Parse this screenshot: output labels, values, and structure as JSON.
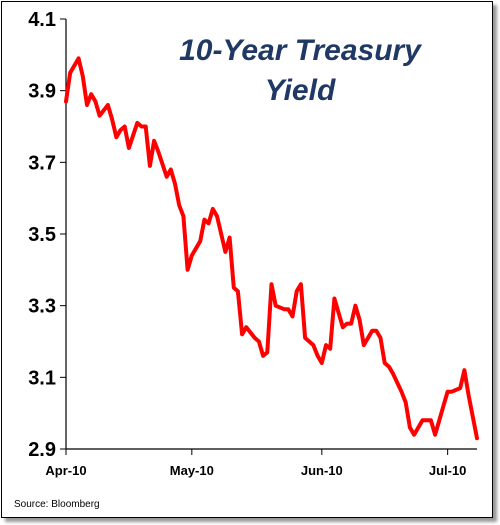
{
  "chart_data": {
    "type": "line",
    "title": "10-Year Treasury Yield",
    "title_lines": [
      "10-Year Treasury",
      "Yield"
    ],
    "source": "Source: Bloomberg",
    "ylim": [
      2.9,
      4.1
    ],
    "y_ticks": [
      "4.1",
      "3.9",
      "3.7",
      "3.5",
      "3.3",
      "3.1",
      "2.9"
    ],
    "x_ticks": [
      {
        "label": "Apr-10",
        "date": "2010-04-01"
      },
      {
        "label": "May-10",
        "date": "2010-05-01"
      },
      {
        "label": "Jun-10",
        "date": "2010-06-01"
      },
      {
        "label": "Jul-10",
        "date": "2010-07-01"
      }
    ],
    "xlim": [
      "2010-04-01",
      "2010-07-08"
    ],
    "grid": false,
    "line_color": "#ff0000",
    "series": [
      {
        "x": [
          "2010-04-01",
          "2010-04-02",
          "2010-04-04",
          "2010-04-05",
          "2010-04-06",
          "2010-04-07",
          "2010-04-08",
          "2010-04-09",
          "2010-04-11",
          "2010-04-12",
          "2010-04-13",
          "2010-04-14",
          "2010-04-15",
          "2010-04-16",
          "2010-04-18",
          "2010-04-19",
          "2010-04-20",
          "2010-04-21",
          "2010-04-22",
          "2010-04-23",
          "2010-04-25",
          "2010-04-26",
          "2010-04-27",
          "2010-04-28",
          "2010-04-29",
          "2010-04-30",
          "2010-05-01",
          "2010-05-03",
          "2010-05-04",
          "2010-05-05",
          "2010-05-06",
          "2010-05-07",
          "2010-05-09",
          "2010-05-10",
          "2010-05-11",
          "2010-05-12",
          "2010-05-13",
          "2010-05-14",
          "2010-05-16",
          "2010-05-17",
          "2010-05-18",
          "2010-05-19",
          "2010-05-20",
          "2010-05-21",
          "2010-05-23",
          "2010-05-24",
          "2010-05-25",
          "2010-05-26",
          "2010-05-27",
          "2010-05-28",
          "2010-05-30",
          "2010-05-31",
          "2010-06-01",
          "2010-06-02",
          "2010-06-03",
          "2010-06-04",
          "2010-06-06",
          "2010-06-07",
          "2010-06-08",
          "2010-06-09",
          "2010-06-10",
          "2010-06-11",
          "2010-06-13",
          "2010-06-14",
          "2010-06-15",
          "2010-06-16",
          "2010-06-17",
          "2010-06-18",
          "2010-06-20",
          "2010-06-21",
          "2010-06-22",
          "2010-06-23",
          "2010-06-24",
          "2010-06-25",
          "2010-06-27",
          "2010-06-28",
          "2010-06-29",
          "2010-06-30",
          "2010-07-01",
          "2010-07-02",
          "2010-07-04",
          "2010-07-05",
          "2010-07-06",
          "2010-07-07",
          "2010-07-08"
        ],
        "values": [
          3.87,
          3.95,
          3.99,
          3.94,
          3.86,
          3.89,
          3.87,
          3.83,
          3.86,
          3.82,
          3.77,
          3.79,
          3.8,
          3.74,
          3.81,
          3.8,
          3.8,
          3.69,
          3.76,
          3.73,
          3.66,
          3.68,
          3.64,
          3.58,
          3.55,
          3.4,
          3.44,
          3.48,
          3.54,
          3.53,
          3.57,
          3.55,
          3.45,
          3.49,
          3.35,
          3.34,
          3.22,
          3.24,
          3.21,
          3.2,
          3.16,
          3.17,
          3.36,
          3.3,
          3.29,
          3.29,
          3.27,
          3.34,
          3.36,
          3.21,
          3.19,
          3.16,
          3.14,
          3.19,
          3.18,
          3.32,
          3.24,
          3.25,
          3.25,
          3.3,
          3.26,
          3.19,
          3.23,
          3.23,
          3.21,
          3.14,
          3.13,
          3.11,
          3.06,
          3.03,
          2.96,
          2.94,
          2.96,
          2.98,
          2.98,
          2.94,
          2.98,
          3.02,
          3.06,
          3.06,
          3.07,
          3.12,
          3.05,
          2.99,
          2.93
        ]
      }
    ]
  }
}
